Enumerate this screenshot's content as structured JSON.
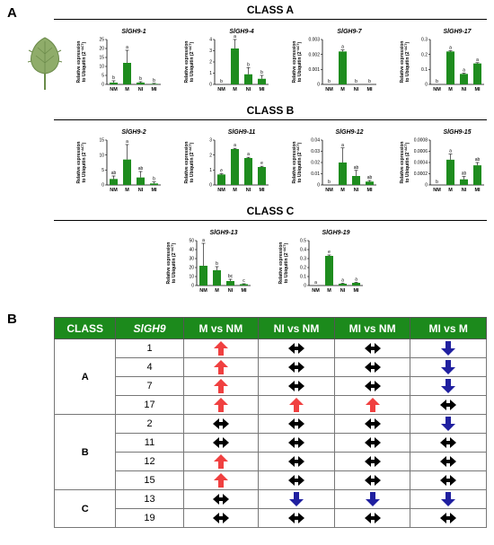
{
  "panel_a": {
    "letter": "A",
    "class_a": "CLASS A",
    "class_b": "CLASS B",
    "class_c": "CLASS C",
    "leaf_icon": "tomato-leaf-icon"
  },
  "ylabel_line1": "Relative expression",
  "ylabel_line2": "to Ubiquitin (2",
  "ylabel_exp": "−ΔCT",
  "ylabel_end": ")",
  "colors": {
    "bar": "#1e8c1e",
    "header": "#1c8a1c",
    "up": "#f04040",
    "down": "#2020a0",
    "none": "#000000"
  },
  "chart_data": [
    {
      "id": "sigh9-1",
      "type": "bar",
      "title": "SlGH9-1",
      "categories": [
        "NM",
        "M",
        "NI",
        "MI"
      ],
      "values": [
        1,
        12,
        1,
        0.3
      ],
      "errors": [
        1,
        7,
        0.5,
        0.3
      ],
      "letters": [
        "b",
        "a",
        "b",
        "b"
      ],
      "ylim": [
        0,
        25
      ],
      "yticks": [
        0,
        5,
        10,
        15,
        20,
        25
      ],
      "ylabel": "Relative expression to Ubiquitin (2−ΔCT)"
    },
    {
      "id": "sigh9-4",
      "type": "bar",
      "title": "SlGH9-4",
      "categories": [
        "NM",
        "M",
        "NI",
        "MI"
      ],
      "values": [
        0,
        3.2,
        0.9,
        0.5
      ],
      "errors": [
        0,
        0.8,
        0.6,
        0.3
      ],
      "letters": [
        "b",
        "a",
        "b",
        "b"
      ],
      "ylim": [
        0,
        4
      ],
      "yticks": [
        0,
        1,
        2,
        3,
        4
      ],
      "ylabel": "Relative expression to Ubiquitin (2−ΔCT)"
    },
    {
      "id": "sigh9-7",
      "type": "bar",
      "title": "SlGH9-7",
      "categories": [
        "NM",
        "M",
        "NI",
        "MI"
      ],
      "values": [
        0,
        0.0022,
        0,
        0
      ],
      "errors": [
        0,
        0.0001,
        0,
        0
      ],
      "letters": [
        "b",
        "a",
        "b",
        "b"
      ],
      "ylim": [
        0,
        0.003
      ],
      "yticks": [
        0,
        0.001,
        0.002,
        0.003
      ],
      "ylabel": "Relative expression to Ubiquitin (2−ΔCT)"
    },
    {
      "id": "sigh9-17",
      "type": "bar",
      "title": "SlGH9-17",
      "categories": [
        "NM",
        "M",
        "NI",
        "MI"
      ],
      "values": [
        0,
        0.22,
        0.07,
        0.14
      ],
      "errors": [
        0,
        0.005,
        0.005,
        0.005
      ],
      "letters": [
        "b",
        "a",
        "a",
        "a"
      ],
      "ylim": [
        0,
        0.3
      ],
      "yticks": [
        0,
        0.1,
        0.2,
        0.3
      ],
      "ylabel": "Relative expression to Ubiquitin (2−ΔCT)"
    },
    {
      "id": "sigh9-2",
      "type": "bar",
      "title": "SlGH9-2",
      "categories": [
        "NM",
        "M",
        "NI",
        "MI"
      ],
      "values": [
        2,
        8.5,
        2.5,
        0.5
      ],
      "errors": [
        1,
        5,
        2,
        0.5
      ],
      "letters": [
        "ab",
        "a",
        "ab",
        "b"
      ],
      "ylim": [
        0,
        15
      ],
      "yticks": [
        0,
        5,
        10,
        15
      ],
      "ylabel": "Relative expression to Ubiquitin (2−ΔCT)"
    },
    {
      "id": "sigh9-11",
      "type": "bar",
      "title": "SlGH9-11",
      "categories": [
        "NM",
        "M",
        "NI",
        "MI"
      ],
      "values": [
        0.7,
        2.4,
        1.8,
        1.2
      ],
      "errors": [
        0.05,
        0.05,
        0.05,
        0.05
      ],
      "letters": [
        "e",
        "a",
        "a",
        "e"
      ],
      "ylim": [
        0,
        3
      ],
      "yticks": [
        0,
        1,
        2,
        3
      ],
      "ylabel": "Relative expression to Ubiquitin (2−ΔCT)"
    },
    {
      "id": "sigh9-12",
      "type": "bar",
      "title": "SlGH9-12",
      "categories": [
        "NM",
        "M",
        "NI",
        "MI"
      ],
      "values": [
        0,
        0.02,
        0.008,
        0.003
      ],
      "errors": [
        0,
        0.013,
        0.005,
        0.001
      ],
      "letters": [
        "b",
        "a",
        "ab",
        "ab"
      ],
      "ylim": [
        0,
        0.04
      ],
      "yticks": [
        0,
        0.01,
        0.02,
        0.03,
        0.04
      ],
      "ylabel": "Relative expression to Ubiquitin (2−ΔCT)"
    },
    {
      "id": "sigh9-15",
      "type": "bar",
      "title": "SlGH9-15",
      "categories": [
        "NM",
        "M",
        "NI",
        "MI"
      ],
      "values": [
        0,
        0.00045,
        0.0001,
        0.00035
      ],
      "errors": [
        0,
        0.0001,
        5e-05,
        5e-05
      ],
      "letters": [
        "b",
        "a",
        "ab",
        "ab"
      ],
      "ylim": [
        0,
        0.0008
      ],
      "yticks": [
        0,
        0.0002,
        0.0004,
        0.0006,
        0.0008
      ],
      "ylabel": "Relative expression to Ubiquitin (2−ΔCT)"
    },
    {
      "id": "sigh9-13",
      "type": "bar",
      "title": "SlGH9-13",
      "categories": [
        "NM",
        "M",
        "NI",
        "MI"
      ],
      "values": [
        22,
        17,
        5,
        1.5
      ],
      "errors": [
        25,
        4,
        2,
        0.5
      ],
      "letters": [
        "a",
        "b",
        "bc",
        "c"
      ],
      "ylim": [
        0,
        50
      ],
      "yticks": [
        0,
        10,
        20,
        30,
        40,
        50
      ],
      "ylabel": "Relative expression to Ubiquitin (2−ΔCT)"
    },
    {
      "id": "sigh9-19",
      "type": "bar",
      "title": "SlGH9-19",
      "categories": [
        "NM",
        "M",
        "NI",
        "MI"
      ],
      "values": [
        0,
        0.33,
        0.02,
        0.03
      ],
      "errors": [
        0,
        0.01,
        0.005,
        0.005
      ],
      "letters": [
        "a",
        "e",
        "a",
        "a"
      ],
      "ylim": [
        0,
        0.5
      ],
      "yticks": [
        0,
        0.1,
        0.2,
        0.3,
        0.4,
        0.5
      ],
      "ylabel": "Relative expression to Ubiquitin (2−ΔCT)"
    }
  ],
  "panel_b": {
    "letter": "B",
    "headers": [
      "CLASS",
      "SlGH9",
      "M vs NM",
      "NI vs NM",
      "MI vs NM",
      "MI vs M"
    ],
    "groups": [
      {
        "cls": "A",
        "rows": [
          {
            "gene": "1",
            "cells": [
              "up",
              "none",
              "none",
              "down"
            ]
          },
          {
            "gene": "4",
            "cells": [
              "up",
              "none",
              "none",
              "down"
            ]
          },
          {
            "gene": "7",
            "cells": [
              "up",
              "none",
              "none",
              "down"
            ]
          },
          {
            "gene": "17",
            "cells": [
              "up",
              "up",
              "up",
              "none"
            ]
          }
        ]
      },
      {
        "cls": "B",
        "rows": [
          {
            "gene": "2",
            "cells": [
              "none",
              "none",
              "none",
              "down"
            ]
          },
          {
            "gene": "11",
            "cells": [
              "none",
              "none",
              "none",
              "none"
            ]
          },
          {
            "gene": "12",
            "cells": [
              "up",
              "none",
              "none",
              "none"
            ]
          },
          {
            "gene": "15",
            "cells": [
              "up",
              "none",
              "none",
              "none"
            ]
          }
        ]
      },
      {
        "cls": "C",
        "rows": [
          {
            "gene": "13",
            "cells": [
              "none",
              "down",
              "down",
              "down"
            ]
          },
          {
            "gene": "19",
            "cells": [
              "none",
              "none",
              "none",
              "none"
            ]
          }
        ]
      }
    ]
  }
}
